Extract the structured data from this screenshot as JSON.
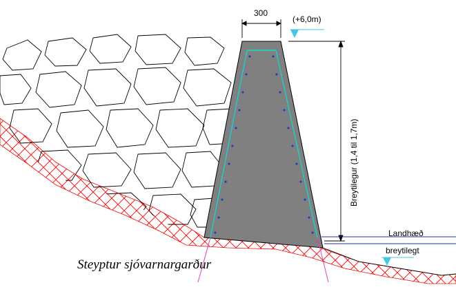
{
  "drawing": {
    "width_dimension": "300",
    "top_elevation": "(+6,0m)",
    "height_dimension": "Breytilegur (1,4 til 1,7m)",
    "ground_level": "Landhæð",
    "ground_level_note": "breytilegt",
    "caption": "Steyptur sjóvarnargarður"
  },
  "colors": {
    "concrete": "#808080",
    "soil_hatch": "#ff0000",
    "reinforcement_outline": "#00e0e0",
    "rebar_dots": "#1f3fbf",
    "ground_line": "#2030a0",
    "anchor_lines": "#e040c0",
    "elevation_marker": "#40c8e8",
    "top_edge": "#40d040"
  }
}
